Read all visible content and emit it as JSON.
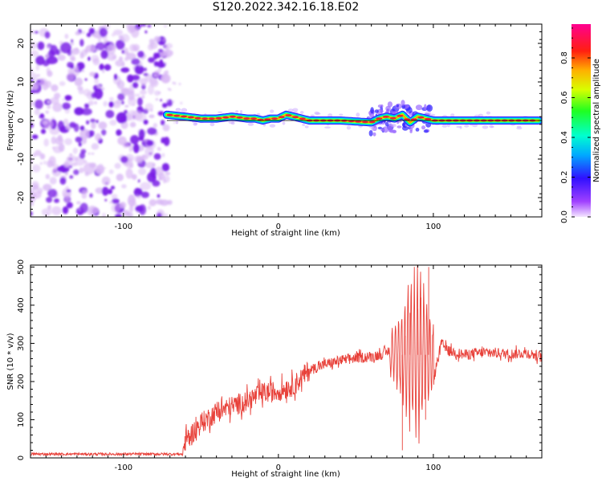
{
  "title": "S120.2022.342.16.18.E02",
  "colors": {
    "background": "#ffffff",
    "snr_line": "#e8413a",
    "ridge_core": "#e8203a",
    "noise_dark": "#7a1fe6",
    "noise_light": "#d9b8f5"
  },
  "chart_data": [
    {
      "type": "heatmap",
      "title": "S120.2022.342.16.18.E02",
      "xlabel": "Height of straight line (km)",
      "ylabel": "Frequency (Hz)",
      "xlim": [
        -160,
        170
      ],
      "ylim": [
        -25,
        25
      ],
      "x_ticks": [
        -100,
        0,
        100
      ],
      "x_tick_labels": [
        "-100",
        "0",
        "100"
      ],
      "y_ticks": [
        -20,
        -10,
        0,
        10,
        20
      ],
      "y_tick_labels": [
        "-20",
        "-10",
        "0",
        "10",
        "20"
      ],
      "noise_region_x": [
        -160,
        -72
      ],
      "signal_region_x": [
        -72,
        168
      ],
      "ridge": {
        "x": [
          -72,
          -60,
          -50,
          -40,
          -30,
          -20,
          -15,
          -10,
          -5,
          0,
          5,
          10,
          15,
          20,
          40,
          60,
          65,
          70,
          75,
          80,
          85,
          90,
          95,
          100,
          120,
          140,
          168
        ],
        "frequency": [
          1.5,
          1.0,
          0.5,
          0.5,
          1.0,
          0.5,
          0.5,
          0.0,
          0.5,
          0.5,
          1.5,
          1.0,
          0.5,
          0.0,
          0.0,
          -0.5,
          0.5,
          1.0,
          0.5,
          1.5,
          -0.5,
          1.0,
          0.5,
          0.0,
          0.0,
          0.0,
          0.0
        ]
      },
      "colorbar": {
        "label": "Normalized spectral amplitude",
        "range": [
          0.0,
          0.97
        ],
        "ticks": [
          0.0,
          0.2,
          0.4,
          0.6,
          0.8
        ],
        "tick_labels": [
          "0.0",
          "0.2",
          "0.4",
          "0.6",
          "0.8"
        ]
      }
    },
    {
      "type": "line",
      "xlabel": "Height of straight line (km)",
      "ylabel": "SNR (10 * v/v)",
      "xlim": [
        -160,
        170
      ],
      "ylim": [
        0,
        505
      ],
      "x_ticks": [
        -100,
        0,
        100
      ],
      "x_tick_labels": [
        "-100",
        "0",
        "100"
      ],
      "y_ticks": [
        0,
        100,
        200,
        300,
        400,
        500
      ],
      "y_tick_labels": [
        "0",
        "100",
        "200",
        "300",
        "400",
        "500"
      ],
      "series": [
        {
          "x": [
            -160,
            -140,
            -120,
            -100,
            -80,
            -62,
            -60,
            -50,
            -40,
            -30,
            -20,
            -10,
            0,
            10,
            20,
            30,
            40,
            50,
            60,
            70,
            75,
            78,
            80,
            82,
            85,
            88,
            90,
            92,
            95,
            97,
            100,
            105,
            110,
            120,
            130,
            140,
            150,
            160,
            170
          ],
          "values": [
            10,
            12,
            10,
            11,
            10,
            10,
            45,
            90,
            120,
            135,
            150,
            170,
            175,
            190,
            230,
            245,
            255,
            262,
            265,
            275,
            300,
            200,
            20,
            320,
            380,
            160,
            390,
            420,
            100,
            500,
            200,
            300,
            280,
            270,
            275,
            275,
            272,
            275,
            265
          ]
        }
      ]
    }
  ]
}
